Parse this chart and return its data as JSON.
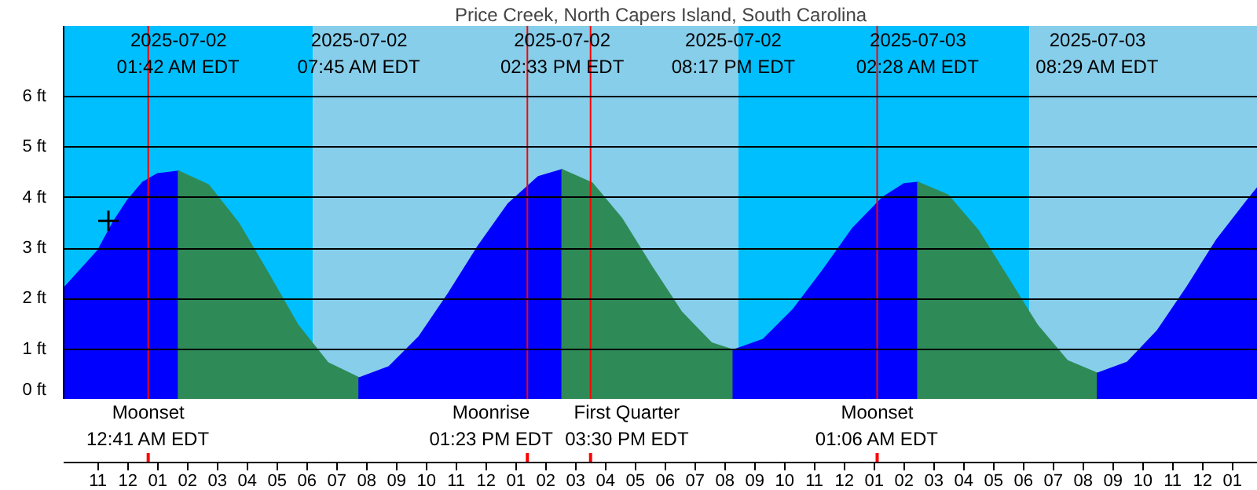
{
  "chart_data": {
    "type": "area",
    "title": "Price Creek, North Capers Island, South Carolina",
    "xlim": [
      "2025-07-01T21:51",
      "2025-07-03T13:51"
    ],
    "ylim": [
      0,
      7.4
    ],
    "xticks": [
      {
        "value": "2025-07-01T23:00",
        "label": "11"
      },
      {
        "value": "2025-07-02T00:00",
        "label": "12"
      },
      {
        "value": "2025-07-02T01:00",
        "label": "01"
      },
      {
        "value": "2025-07-02T02:00",
        "label": "02"
      },
      {
        "value": "2025-07-02T03:00",
        "label": "03"
      },
      {
        "value": "2025-07-02T04:00",
        "label": "04"
      },
      {
        "value": "2025-07-02T05:00",
        "label": "05"
      },
      {
        "value": "2025-07-02T06:00",
        "label": "06"
      },
      {
        "value": "2025-07-02T07:00",
        "label": "07"
      },
      {
        "value": "2025-07-02T08:00",
        "label": "08"
      },
      {
        "value": "2025-07-02T09:00",
        "label": "09"
      },
      {
        "value": "2025-07-02T10:00",
        "label": "10"
      },
      {
        "value": "2025-07-02T11:00",
        "label": "11"
      },
      {
        "value": "2025-07-02T12:00",
        "label": "12"
      },
      {
        "value": "2025-07-02T13:00",
        "label": "01"
      },
      {
        "value": "2025-07-02T14:00",
        "label": "02"
      },
      {
        "value": "2025-07-02T15:00",
        "label": "03"
      },
      {
        "value": "2025-07-02T16:00",
        "label": "04"
      },
      {
        "value": "2025-07-02T17:00",
        "label": "05"
      },
      {
        "value": "2025-07-02T18:00",
        "label": "06"
      },
      {
        "value": "2025-07-02T19:00",
        "label": "07"
      },
      {
        "value": "2025-07-02T20:00",
        "label": "08"
      },
      {
        "value": "2025-07-02T21:00",
        "label": "09"
      },
      {
        "value": "2025-07-02T22:00",
        "label": "10"
      },
      {
        "value": "2025-07-02T23:00",
        "label": "11"
      },
      {
        "value": "2025-07-03T00:00",
        "label": "12"
      },
      {
        "value": "2025-07-03T01:00",
        "label": "01"
      },
      {
        "value": "2025-07-03T02:00",
        "label": "02"
      },
      {
        "value": "2025-07-03T03:00",
        "label": "03"
      },
      {
        "value": "2025-07-03T04:00",
        "label": "04"
      },
      {
        "value": "2025-07-03T05:00",
        "label": "05"
      },
      {
        "value": "2025-07-03T06:00",
        "label": "06"
      },
      {
        "value": "2025-07-03T07:00",
        "label": "07"
      },
      {
        "value": "2025-07-03T08:00",
        "label": "08"
      },
      {
        "value": "2025-07-03T09:00",
        "label": "09"
      },
      {
        "value": "2025-07-03T10:00",
        "label": "10"
      },
      {
        "value": "2025-07-03T11:00",
        "label": "11"
      },
      {
        "value": "2025-07-03T12:00",
        "label": "12"
      },
      {
        "value": "2025-07-03T13:00",
        "label": "01"
      }
    ],
    "yticks": [
      {
        "value": 0,
        "label": "0 ft"
      },
      {
        "value": 1,
        "label": "1 ft"
      },
      {
        "value": 2,
        "label": "2 ft"
      },
      {
        "value": 3,
        "label": "3 ft"
      },
      {
        "value": 4,
        "label": "4 ft"
      },
      {
        "value": 5,
        "label": "5 ft"
      },
      {
        "value": 6,
        "label": "6 ft"
      }
    ],
    "grid": "y",
    "bands": [
      {
        "axis": "x",
        "from": "2025-07-01T21:51",
        "to": "2025-07-02T06:12",
        "color": "#00bfff"
      },
      {
        "axis": "x",
        "from": "2025-07-02T06:12",
        "to": "2025-07-02T20:27",
        "color": "#87ceeb"
      },
      {
        "axis": "x",
        "from": "2025-07-02T20:27",
        "to": "2025-07-03T06:12",
        "color": "#00bfff"
      },
      {
        "axis": "x",
        "from": "2025-07-03T06:12",
        "to": "2025-07-03T13:51",
        "color": "#87ceeb"
      }
    ],
    "series": [
      {
        "color": "#0000ff",
        "x": [
          "2025-07-01T21:51",
          "2025-07-01T23:00",
          "2025-07-01T23:30",
          "2025-07-02T00:00",
          "2025-07-02T00:30",
          "2025-07-02T01:00",
          "2025-07-02T01:42"
        ],
        "values": [
          2.2,
          2.95,
          3.5,
          3.95,
          4.3,
          4.47,
          4.52
        ]
      },
      {
        "color": "#2e8b57",
        "x": [
          "2025-07-02T01:42",
          "2025-07-02T02:42",
          "2025-07-02T03:42",
          "2025-07-02T04:42",
          "2025-07-02T05:42",
          "2025-07-02T06:42",
          "2025-07-02T07:45"
        ],
        "values": [
          4.52,
          4.25,
          3.5,
          2.5,
          1.47,
          0.73,
          0.43
        ]
      },
      {
        "color": "#0000ff",
        "x": [
          "2025-07-02T07:45",
          "2025-07-02T08:45",
          "2025-07-02T09:45",
          "2025-07-02T10:45",
          "2025-07-02T11:45",
          "2025-07-02T12:45",
          "2025-07-02T13:45",
          "2025-07-02T14:33"
        ],
        "values": [
          0.43,
          0.65,
          1.24,
          2.11,
          3.05,
          3.88,
          4.41,
          4.55
        ]
      },
      {
        "color": "#2e8b57",
        "x": [
          "2025-07-02T14:33",
          "2025-07-02T15:33",
          "2025-07-02T16:33",
          "2025-07-02T17:33",
          "2025-07-02T18:33",
          "2025-07-02T19:33",
          "2025-07-02T20:17"
        ],
        "values": [
          4.55,
          4.29,
          3.58,
          2.63,
          1.73,
          1.12,
          0.98
        ]
      },
      {
        "color": "#0000ff",
        "x": [
          "2025-07-02T20:17",
          "2025-07-02T21:17",
          "2025-07-02T22:17",
          "2025-07-02T23:17",
          "2025-07-03T00:17",
          "2025-07-03T01:17",
          "2025-07-03T02:00",
          "2025-07-03T02:28"
        ],
        "values": [
          0.98,
          1.19,
          1.78,
          2.56,
          3.39,
          4.0,
          4.27,
          4.3
        ]
      },
      {
        "color": "#2e8b57",
        "x": [
          "2025-07-03T02:28",
          "2025-07-03T03:28",
          "2025-07-03T04:28",
          "2025-07-03T05:28",
          "2025-07-03T06:28",
          "2025-07-03T07:28",
          "2025-07-03T08:29"
        ],
        "values": [
          4.3,
          4.05,
          3.36,
          2.42,
          1.47,
          0.77,
          0.52
        ]
      },
      {
        "color": "#0000ff",
        "x": [
          "2025-07-03T08:29",
          "2025-07-03T09:29",
          "2025-07-03T10:29",
          "2025-07-03T11:29",
          "2025-07-03T12:29",
          "2025-07-03T13:29",
          "2025-07-03T13:51"
        ],
        "values": [
          0.52,
          0.74,
          1.36,
          2.23,
          3.17,
          3.93,
          4.2
        ]
      },
      {
        "type": "scatter",
        "marker": "cross",
        "color": "#000000",
        "x": [
          "2025-07-01T23:21"
        ],
        "values": [
          3.54
        ]
      }
    ],
    "ref_lines": [
      {
        "axis": "x",
        "value": "2025-07-02T00:41",
        "label": "Moonset\n12:41 AM EDT",
        "color": "#ff0000"
      },
      {
        "axis": "x",
        "value": "2025-07-02T13:23",
        "label": "Moonrise\n01:23 PM EDT",
        "color": "#ff0000"
      },
      {
        "axis": "x",
        "value": "2025-07-02T15:30",
        "label": "First Quarter\n03:30 PM EDT",
        "color": "#ff0000"
      },
      {
        "axis": "x",
        "value": "2025-07-03T01:06",
        "label": "Moonset\n01:06 AM EDT",
        "color": "#ff0000"
      }
    ],
    "annotations": [
      "2025-07-02\n01:42 AM EDT",
      "2025-07-02\n07:45 AM EDT",
      "2025-07-02\n02:33 PM EDT",
      "2025-07-02\n08:17 PM EDT",
      "2025-07-03\n02:28 AM EDT",
      "2025-07-03\n08:29 AM EDT"
    ]
  }
}
